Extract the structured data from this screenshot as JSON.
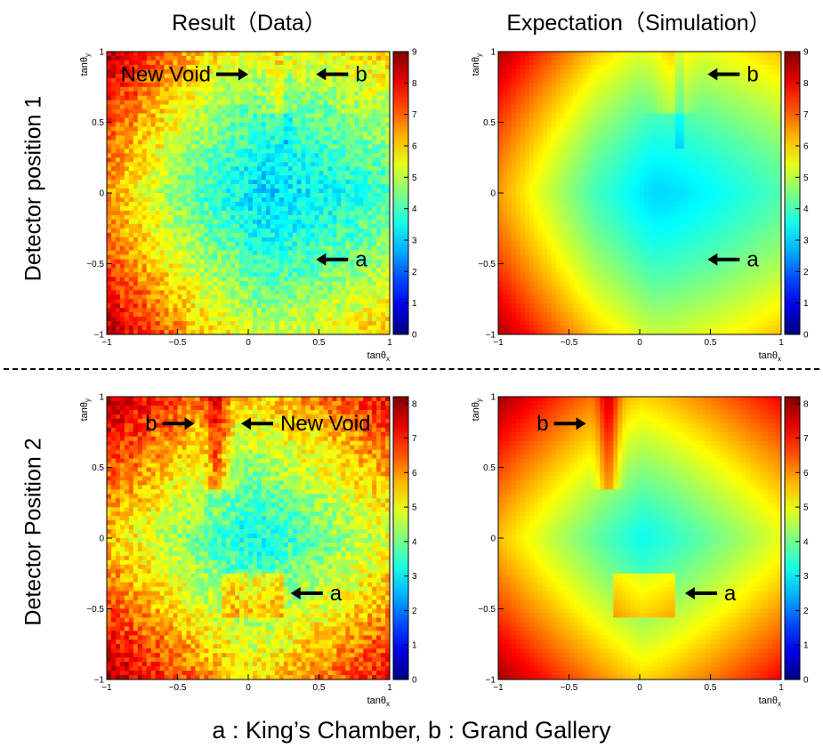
{
  "titles": {
    "col1": "Result（Data）",
    "col2": "Expectation（Simulation）",
    "row1": "Detector position 1",
    "row2": "Detector Position 2",
    "caption": "a : King’s Chamber, b : Grand Gallery"
  },
  "chart_data": [
    {
      "type": "heatmap",
      "xlabel": "tanθx",
      "ylabel": "tanθy",
      "xlim": [
        -1,
        1
      ],
      "ylim": [
        -1,
        1
      ],
      "xticks": [
        "−1",
        "−0.5",
        "0",
        "0.5",
        "1"
      ],
      "yticks": [
        "1",
        "0.5",
        "0",
        "−0.5",
        "−1"
      ],
      "colorbar": {
        "range": [
          0,
          9
        ],
        "ticks": [
          "9",
          "8",
          "7",
          "6",
          "5",
          "4",
          "3",
          "2",
          "1",
          "0"
        ]
      },
      "annotations": [
        {
          "label": "New Void",
          "x": 0.0,
          "y": 0.84,
          "arrow": "right"
        },
        {
          "label": "b",
          "x": 0.48,
          "y": 0.84,
          "arrow": "left"
        },
        {
          "label": "a",
          "x": 0.48,
          "y": -0.47,
          "arrow": "left"
        }
      ]
    },
    {
      "type": "heatmap",
      "xlabel": "tanθx",
      "ylabel": "tanθy",
      "xlim": [
        -1,
        1
      ],
      "ylim": [
        -1,
        1
      ],
      "xticks": [
        "−1",
        "−0.5",
        "0",
        "0.5",
        "1"
      ],
      "yticks": [
        "1",
        "0.5",
        "0",
        "−0.5",
        "−1"
      ],
      "colorbar": {
        "range": [
          0,
          9
        ],
        "ticks": [
          "9",
          "8",
          "7",
          "6",
          "5",
          "4",
          "3",
          "2",
          "1",
          "0"
        ]
      },
      "annotations": [
        {
          "label": "b",
          "x": 0.48,
          "y": 0.84,
          "arrow": "left"
        },
        {
          "label": "a",
          "x": 0.48,
          "y": -0.47,
          "arrow": "left"
        }
      ]
    },
    {
      "type": "heatmap",
      "xlabel": "tanθx",
      "ylabel": "tanθy",
      "xlim": [
        -1,
        1
      ],
      "ylim": [
        -1,
        1
      ],
      "xticks": [
        "−1",
        "−0.5",
        "0",
        "0.5",
        "1"
      ],
      "yticks": [
        "1",
        "0.5",
        "0",
        "−0.5",
        "−1"
      ],
      "colorbar": {
        "range": [
          0,
          8.2
        ],
        "ticks": [
          "8",
          "7",
          "6",
          "5",
          "4",
          "3",
          "2",
          "1",
          "0"
        ]
      },
      "annotations": [
        {
          "label": "b",
          "x": -0.38,
          "y": 0.81,
          "arrow": "right"
        },
        {
          "label": "New Void",
          "x": -0.05,
          "y": 0.81,
          "arrow": "left"
        },
        {
          "label": "a",
          "x": 0.3,
          "y": -0.39,
          "arrow": "left"
        }
      ]
    },
    {
      "type": "heatmap",
      "xlabel": "tanθx",
      "ylabel": "tanθy",
      "xlim": [
        -1,
        1
      ],
      "ylim": [
        -1,
        1
      ],
      "xticks": [
        "−1",
        "−0.5",
        "0",
        "0.5",
        "1"
      ],
      "yticks": [
        "1",
        "0.5",
        "0",
        "−0.5",
        "−1"
      ],
      "colorbar": {
        "range": [
          0,
          8.2
        ],
        "ticks": [
          "8",
          "7",
          "6",
          "5",
          "4",
          "3",
          "2",
          "1",
          "0"
        ]
      },
      "annotations": [
        {
          "label": "b",
          "x": -0.38,
          "y": 0.81,
          "arrow": "right"
        },
        {
          "label": "a",
          "x": 0.32,
          "y": -0.39,
          "arrow": "left"
        }
      ]
    }
  ]
}
